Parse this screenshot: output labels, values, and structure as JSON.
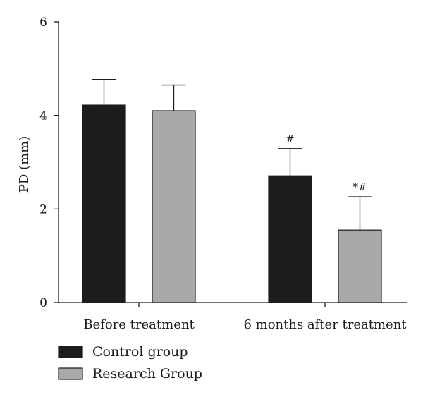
{
  "chart_data": {
    "type": "bar",
    "title": "",
    "xlabel": "",
    "ylabel": "PD (mm)",
    "ylim": [
      0,
      6
    ],
    "yticks": [
      0,
      2,
      4,
      6
    ],
    "grid": false,
    "legend_position": "bottom-left",
    "categories": [
      "Before treatment",
      "6 months after treatment"
    ],
    "series": [
      {
        "name": "Control group",
        "color": "#1c1c1c",
        "values": [
          4.22,
          2.71
        ],
        "errors": [
          0.55,
          0.58
        ],
        "annotations": [
          "",
          "#"
        ]
      },
      {
        "name": "Research Group",
        "color": "#a9a9a9",
        "values": [
          4.1,
          1.55
        ],
        "errors": [
          0.55,
          0.71
        ],
        "annotations": [
          "",
          "*#"
        ]
      }
    ]
  }
}
